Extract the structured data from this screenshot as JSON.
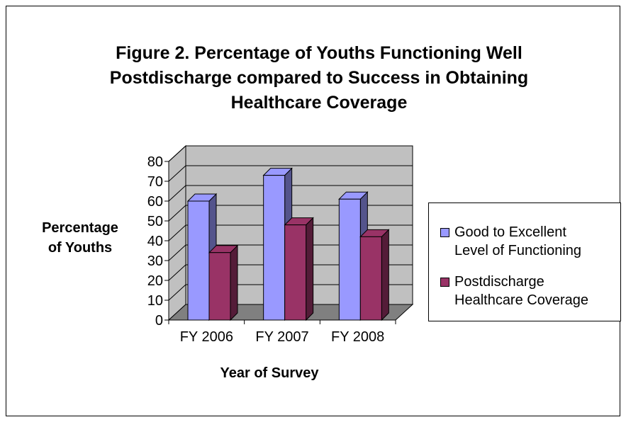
{
  "chart_data": {
    "type": "bar",
    "title_lines": [
      "Figure 2. Percentage of Youths Functioning Well",
      "Postdischarge compared to Success in Obtaining",
      "Healthcare Coverage"
    ],
    "ylabel_lines": [
      "Percentage",
      "of Youths"
    ],
    "xlabel": "Year of Survey",
    "categories": [
      "FY 2006",
      "FY 2007",
      "FY 2008"
    ],
    "y_ticks": [
      "0",
      "10",
      "20",
      "30",
      "40",
      "50",
      "60",
      "70",
      "80"
    ],
    "ylim": [
      0,
      80
    ],
    "grid": true,
    "legend_position": "right",
    "series": [
      {
        "name_lines": [
          "Good to Excellent",
          "Level of Functioning"
        ],
        "values": [
          60,
          73,
          61
        ],
        "color": "#9999ff"
      },
      {
        "name_lines": [
          "Postdischarge",
          "Healthcare Coverage"
        ],
        "values": [
          34,
          48,
          42
        ],
        "color": "#993366"
      }
    ]
  }
}
